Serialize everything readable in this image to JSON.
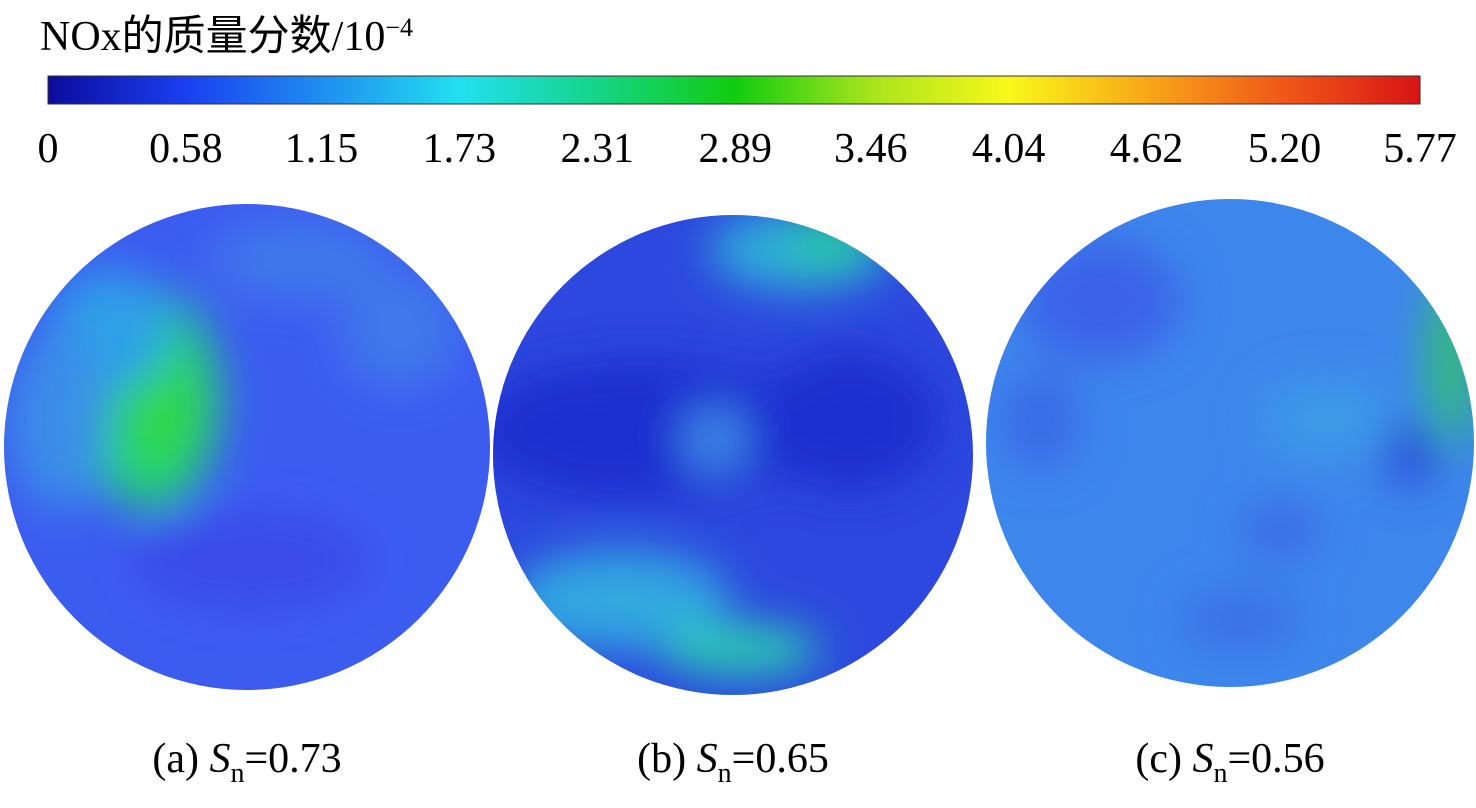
{
  "chart_data": {
    "type": "contour",
    "title": "NOx的质量分数/10",
    "title_superscript": "−4",
    "colorbar": {
      "lim": [
        0,
        5.77
      ],
      "ticks": [
        0,
        0.58,
        1.15,
        1.73,
        2.31,
        2.89,
        3.46,
        4.04,
        4.62,
        {
          "value": 5.2,
          "label": "5.20"
        },
        5.77
      ],
      "colors": [
        "#0b0b9c",
        "#1a3ff0",
        "#1f8ef0",
        "#22e0f0",
        "#16d488",
        "#10cc10",
        "#a8e41c",
        "#f8f81a",
        "#f8a818",
        "#f05818",
        "#d81414"
      ]
    },
    "panels": [
      {
        "prefix": "(a) ",
        "symbol": "S",
        "subscript": "n",
        "relation": "=",
        "value": 0.73
      },
      {
        "prefix": "(b) ",
        "symbol": "S",
        "subscript": "n",
        "relation": "=",
        "value": 0.65
      },
      {
        "prefix": "(c) ",
        "symbol": "S",
        "subscript": "n",
        "relation": "=",
        "value": 0.56
      }
    ]
  }
}
